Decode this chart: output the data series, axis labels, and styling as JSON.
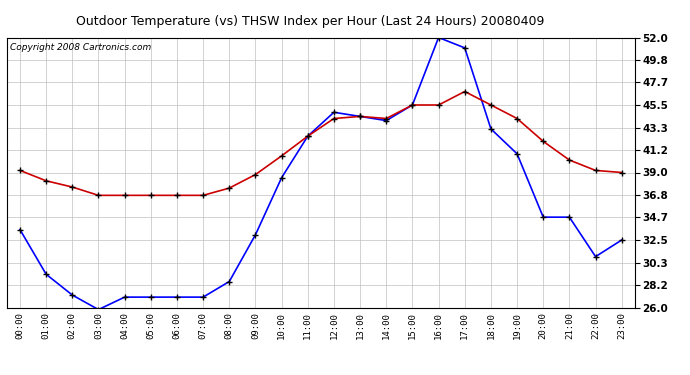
{
  "title": "Outdoor Temperature (vs) THSW Index per Hour (Last 24 Hours) 20080409",
  "copyright": "Copyright 2008 Cartronics.com",
  "hours": [
    "00:00",
    "01:00",
    "02:00",
    "03:00",
    "04:00",
    "05:00",
    "06:00",
    "07:00",
    "08:00",
    "09:00",
    "10:00",
    "11:00",
    "12:00",
    "13:00",
    "14:00",
    "15:00",
    "16:00",
    "17:00",
    "18:00",
    "19:00",
    "20:00",
    "21:00",
    "22:00",
    "23:00"
  ],
  "temp_blue": [
    33.5,
    29.2,
    27.2,
    25.8,
    27.0,
    27.0,
    27.0,
    27.0,
    28.5,
    33.0,
    38.5,
    42.5,
    44.8,
    44.4,
    44.0,
    45.5,
    52.0,
    51.0,
    43.2,
    40.8,
    34.7,
    34.7,
    30.9,
    32.5
  ],
  "temp_red": [
    39.2,
    38.2,
    37.6,
    36.8,
    36.8,
    36.8,
    36.8,
    36.8,
    37.5,
    38.8,
    40.6,
    42.5,
    44.2,
    44.4,
    44.2,
    45.5,
    45.5,
    46.8,
    45.5,
    44.2,
    42.0,
    40.2,
    39.2,
    39.0
  ],
  "ylim": [
    26.0,
    52.0
  ],
  "yticks": [
    26.0,
    28.2,
    30.3,
    32.5,
    34.7,
    36.8,
    39.0,
    41.2,
    43.3,
    45.5,
    47.7,
    49.8,
    52.0
  ],
  "background_color": "#ffffff",
  "plot_bg_color": "#ffffff",
  "grid_color": "#c0c0c0",
  "line_blue": "#0000ff",
  "line_red": "#cc0000",
  "marker_color": "#000000",
  "title_fontsize": 9,
  "copyright_fontsize": 6.5
}
